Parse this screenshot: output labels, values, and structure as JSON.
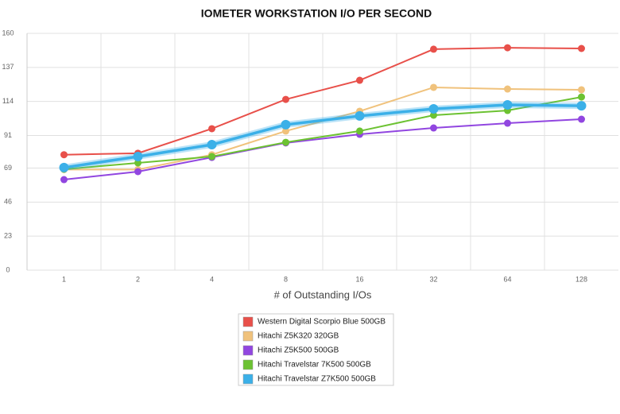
{
  "chart_data": {
    "type": "line",
    "title": "IOMETER WORKSTATION I/O PER SECOND",
    "x_label": "# of Outstanding I/Os",
    "categories": [
      "1",
      "2",
      "4",
      "8",
      "16",
      "32",
      "64",
      "128"
    ],
    "ylim": [
      0,
      160
    ],
    "yticks": [
      0,
      23,
      46,
      69,
      91,
      114,
      137,
      160
    ],
    "grid": true,
    "legend": "bottom",
    "series": [
      {
        "name": "Western Digital Scorpio Blue 500GB",
        "color": "#e8504a",
        "values": [
          78,
          79,
          95.6,
          115.4,
          128.3,
          149.3,
          150.3,
          149.8
        ]
      },
      {
        "name": "Hitachi Z5K320 320GB",
        "color": "#f0c27c",
        "values": [
          68,
          68,
          78,
          94,
          107.4,
          123.5,
          122.4,
          121.9
        ]
      },
      {
        "name": "Hitachi Z5K500 500GB",
        "color": "#9146e0",
        "values": [
          61.2,
          66.6,
          76.2,
          86,
          91.8,
          96.1,
          99.3,
          102
        ]
      },
      {
        "name": "Hitachi Travelstar 7K500 500GB",
        "color": "#6cc232",
        "values": [
          68.2,
          72.5,
          76.8,
          86.4,
          94,
          104.7,
          107.9,
          117
        ]
      },
      {
        "name": "Hitachi Travelstar Z7K500 500GB",
        "color": "#3bb0e8",
        "values": [
          69.3,
          76.8,
          84.8,
          98.3,
          104.2,
          109,
          111.7,
          111.1
        ]
      }
    ]
  }
}
